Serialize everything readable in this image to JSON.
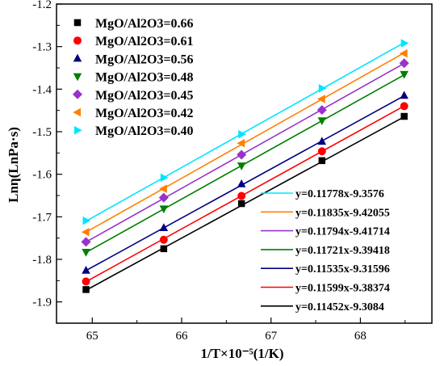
{
  "chart_data": {
    "type": "scatter",
    "xlabel": "1/T×10⁻⁵(1/K)",
    "ylabel": "Lnη(LnPa·s)",
    "xlim": [
      64.6,
      68.8
    ],
    "ylim": [
      -1.95,
      -1.2
    ],
    "xticks": [
      65,
      66,
      67,
      68
    ],
    "yticks": [
      -1.2,
      -1.3,
      -1.4,
      -1.5,
      -1.6,
      -1.7,
      -1.8,
      -1.9
    ],
    "x": [
      64.93,
      65.8,
      66.67,
      67.57,
      68.49
    ],
    "series": [
      {
        "name": "MgO/Al2O3=0.66",
        "marker": "square",
        "color": "#000000",
        "values": [
          -1.871,
          -1.775,
          -1.669,
          -1.568,
          -1.464
        ],
        "fit_label": "y=0.11452x-9.3084",
        "slope": 0.11452,
        "intercept": -9.3084
      },
      {
        "name": "MgO/Al2O3=0.61",
        "marker": "circle",
        "color": "#ff0000",
        "values": [
          -1.852,
          -1.754,
          -1.651,
          -1.546,
          -1.44
        ],
        "fit_label": "y=0.11599x-9.38374",
        "slope": 0.11599,
        "intercept": -9.38374
      },
      {
        "name": "MgO/Al2O3=0.56",
        "marker": "triangle-up",
        "color": "#000080",
        "values": [
          -1.826,
          -1.726,
          -1.623,
          -1.523,
          -1.415
        ],
        "fit_label": "y=0.11535x-9.31596",
        "slope": 0.11535,
        "intercept": -9.31596
      },
      {
        "name": "MgO/Al2O3=0.48",
        "marker": "triangle-down",
        "color": "#008000",
        "values": [
          -1.783,
          -1.681,
          -1.58,
          -1.474,
          -1.365
        ],
        "fit_label": "y=0.11721x-9.39418",
        "slope": 0.11721,
        "intercept": -9.39418
      },
      {
        "name": "MgO/Al2O3=0.45",
        "marker": "diamond",
        "color": "#9932cc",
        "values": [
          -1.759,
          -1.655,
          -1.554,
          -1.449,
          -1.339
        ],
        "fit_label": "y=0.11794x-9.41714",
        "slope": 0.11794,
        "intercept": -9.41714
      },
      {
        "name": "MgO/Al2O3=0.42",
        "marker": "triangle-left",
        "color": "#ff8000",
        "values": [
          -1.736,
          -1.634,
          -1.527,
          -1.423,
          -1.316
        ],
        "fit_label": "y=0.11835x-9.42055",
        "slope": 0.11835,
        "intercept": -9.42055
      },
      {
        "name": "MgO/Al2O3=0.40",
        "marker": "triangle-right",
        "color": "#00e5ff",
        "values": [
          -1.709,
          -1.608,
          -1.506,
          -1.398,
          -1.292
        ],
        "fit_label": "y=0.11778x-9.3576",
        "slope": 0.11778,
        "intercept": -9.3576
      }
    ],
    "fit_legend_order": [
      6,
      5,
      4,
      3,
      2,
      1,
      0
    ],
    "grid": false,
    "legend": "top-left",
    "fit_legend": "bottom-right"
  }
}
